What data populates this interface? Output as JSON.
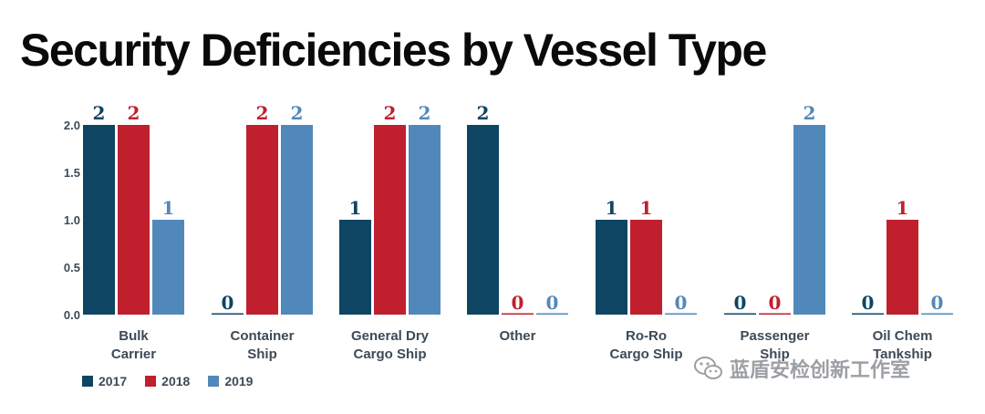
{
  "chart_data": {
    "type": "bar",
    "title": "Security Deficiencies by Vessel Type",
    "xlabel": "",
    "ylabel": "",
    "ylim": [
      0,
      2.0
    ],
    "yticks": [
      "0.0",
      "0.5",
      "1.0",
      "1.5",
      "2.0"
    ],
    "grid": false,
    "legend_position": "bottom-left",
    "categories": [
      [
        "Bulk",
        "Carrier"
      ],
      [
        "Container",
        "Ship"
      ],
      [
        "General Dry",
        "Cargo Ship"
      ],
      [
        "Other"
      ],
      [
        "Ro-Ro",
        "Cargo Ship"
      ],
      [
        "Passenger",
        "Ship"
      ],
      [
        "Oil Chem",
        "Tankship"
      ]
    ],
    "series": [
      {
        "name": "2017",
        "color": "#0e4563",
        "values": [
          2,
          0,
          1,
          2,
          1,
          0,
          0
        ]
      },
      {
        "name": "2018",
        "color": "#c0202e",
        "values": [
          2,
          2,
          2,
          0,
          1,
          0,
          1
        ]
      },
      {
        "name": "2019",
        "color": "#5089b9",
        "values": [
          1,
          2,
          2,
          0,
          0,
          2,
          0
        ]
      }
    ]
  },
  "watermark": {
    "text": "蓝盾安检创新工作室",
    "icon": "wechat-icon"
  }
}
